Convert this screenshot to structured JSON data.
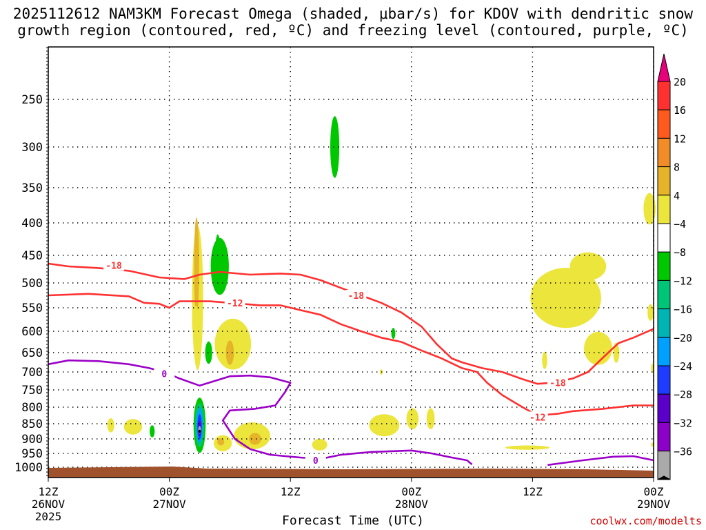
{
  "chart_data": {
    "type": "heatmap",
    "title_line1": "2025112612 NAM3KM Forecast Omega (shaded, μbar/s) for KDOV with dendritic snow",
    "title_line2": "growth region (contoured, red, ºC) and freezing level (contoured, purple, ºC)",
    "xlabel": "Forecast Time (UTC)",
    "credit": "coolwx.com/modelts",
    "x_range_hours": [
      0,
      60
    ],
    "x_ticks": [
      {
        "hour": 0,
        "lines": [
          "12Z",
          "26NOV",
          "2025"
        ]
      },
      {
        "hour": 12,
        "lines": [
          "00Z",
          "27NOV"
        ]
      },
      {
        "hour": 24,
        "lines": [
          "12Z"
        ]
      },
      {
        "hour": 36,
        "lines": [
          "00Z",
          "28NOV"
        ]
      },
      {
        "hour": 48,
        "lines": [
          "12Z"
        ]
      },
      {
        "hour": 60,
        "lines": [
          "00Z",
          "29NOV"
        ]
      }
    ],
    "y_axis": "pressure (mb), reversed",
    "y_ticks": [
      250,
      300,
      350,
      400,
      450,
      500,
      550,
      600,
      650,
      700,
      750,
      800,
      850,
      900,
      950,
      1000
    ],
    "grid": "dotted",
    "colorbar": {
      "labels": [
        "20",
        "16",
        "12",
        "8",
        "4",
        "−4",
        "−8",
        "−12",
        "−16",
        "−20",
        "−24",
        "−28",
        "−32",
        "−36"
      ],
      "colors": [
        "#e8007a",
        "#ff3030",
        "#ff5a1e",
        "#f28c28",
        "#e6b428",
        "#ece53c",
        "#ffffff",
        "#00c800",
        "#00c478",
        "#00b4b4",
        "#00a0ff",
        "#1e3cff",
        "#5a00c8",
        "#8c00c8",
        "#aaaaaa",
        "#000000"
      ]
    },
    "surface_color": "#a0522d",
    "contours": [
      {
        "color": "#ff3030",
        "label": "-18",
        "label_positions": [
          {
            "hour": 6.5,
            "p": 468
          },
          {
            "hour": 30.5,
            "p": 525
          },
          {
            "hour": 50.5,
            "p": 730
          }
        ],
        "points": [
          [
            0,
            465
          ],
          [
            2,
            470
          ],
          [
            5,
            473
          ],
          [
            8,
            478
          ],
          [
            11,
            490
          ],
          [
            13.5,
            493
          ],
          [
            15,
            485
          ],
          [
            17,
            480
          ],
          [
            20,
            485
          ],
          [
            23,
            483
          ],
          [
            25,
            485
          ],
          [
            27,
            495
          ],
          [
            29,
            510
          ],
          [
            31,
            525
          ],
          [
            33,
            540
          ],
          [
            35,
            560
          ],
          [
            37,
            590
          ],
          [
            38.5,
            630
          ],
          [
            40,
            665
          ],
          [
            41,
            675
          ],
          [
            43,
            690
          ],
          [
            45,
            700
          ],
          [
            47,
            720
          ],
          [
            48.5,
            733
          ],
          [
            50,
            730
          ],
          [
            52,
            718
          ],
          [
            53.5,
            700
          ],
          [
            54.5,
            675
          ],
          [
            55.5,
            650
          ],
          [
            56.5,
            628
          ],
          [
            58,
            615
          ],
          [
            60,
            595
          ]
        ]
      },
      {
        "color": "#ff3030",
        "label": "-12",
        "label_positions": [
          {
            "hour": 18.5,
            "p": 540
          },
          {
            "hour": 48.5,
            "p": 830
          }
        ],
        "points": [
          [
            0,
            525
          ],
          [
            4,
            522
          ],
          [
            8,
            527
          ],
          [
            9.5,
            540
          ],
          [
            11,
            542
          ],
          [
            12,
            550
          ],
          [
            13,
            537
          ],
          [
            16,
            537
          ],
          [
            18,
            540
          ],
          [
            21,
            545
          ],
          [
            23,
            545
          ],
          [
            25,
            555
          ],
          [
            27,
            565
          ],
          [
            29,
            585
          ],
          [
            31,
            600
          ],
          [
            33,
            615
          ],
          [
            35,
            625
          ],
          [
            37,
            645
          ],
          [
            39,
            665
          ],
          [
            41,
            690
          ],
          [
            42.5,
            700
          ],
          [
            43.5,
            730
          ],
          [
            45,
            765
          ],
          [
            47,
            800
          ],
          [
            48.5,
            825
          ],
          [
            50.5,
            820
          ],
          [
            52,
            812
          ],
          [
            55,
            805
          ],
          [
            58,
            795
          ],
          [
            60,
            795
          ]
        ]
      },
      {
        "color": "#9a00c8",
        "label": "0",
        "label_positions": [
          {
            "hour": 11.5,
            "p": 705
          },
          {
            "hour": 26.5,
            "p": 975
          }
        ],
        "points": [
          [
            0,
            680
          ],
          [
            2,
            670
          ],
          [
            5,
            672
          ],
          [
            8,
            680
          ],
          [
            10,
            690
          ],
          [
            11.5,
            700
          ],
          [
            13,
            718
          ],
          [
            15,
            738
          ],
          [
            16.5,
            725
          ],
          [
            18,
            712
          ],
          [
            20,
            710
          ],
          [
            22,
            715
          ],
          [
            24,
            730
          ],
          [
            23.5,
            755
          ],
          [
            22.5,
            795
          ],
          [
            20.5,
            805
          ],
          [
            18,
            810
          ],
          [
            17.3,
            840
          ],
          [
            18.5,
            900
          ],
          [
            20,
            935
          ],
          [
            22,
            955
          ],
          [
            25,
            965
          ],
          [
            27,
            970
          ],
          [
            29,
            955
          ],
          [
            32,
            945
          ],
          [
            36,
            940
          ],
          [
            38,
            950
          ],
          [
            40,
            965
          ],
          [
            41.5,
            975
          ],
          [
            42,
            990
          ]
        ]
      },
      {
        "color": "#9a00c8",
        "label": "",
        "label_positions": [],
        "points": [
          [
            49.5,
            992
          ],
          [
            53,
            975
          ],
          [
            56,
            962
          ],
          [
            58,
            960
          ],
          [
            60,
            975
          ]
        ]
      }
    ],
    "omega_regions": [
      {
        "hour": 14.8,
        "p": 530,
        "dh": 0.55,
        "dp": 280,
        "color": "#ece53c"
      },
      {
        "hour": 14.7,
        "p": 470,
        "dh": 0.25,
        "dp": 170,
        "color": "#e6b428"
      },
      {
        "hour": 17.0,
        "p": 470,
        "dh": 0.9,
        "dp": 100,
        "color": "#00c800"
      },
      {
        "hour": 16.8,
        "p": 460,
        "dh": 0.3,
        "dp": 90,
        "color": "#00c800"
      },
      {
        "hour": 14.6,
        "p": 580,
        "dh": 0.35,
        "dp": 70,
        "color": "#ece53c"
      },
      {
        "hour": 18.3,
        "p": 630,
        "dh": 1.8,
        "dp": 120,
        "color": "#ece53c"
      },
      {
        "hour": 18.0,
        "p": 650,
        "dh": 0.4,
        "dp": 60,
        "color": "#e6b428"
      },
      {
        "hour": 15.9,
        "p": 650,
        "dh": 0.35,
        "dp": 55,
        "color": "#00c800"
      },
      {
        "hour": 15.0,
        "p": 855,
        "dh": 0.6,
        "dp": 175,
        "color": "#00c800"
      },
      {
        "hour": 15.0,
        "p": 855,
        "dh": 0.45,
        "dp": 140,
        "color": "#00c478"
      },
      {
        "hour": 15.0,
        "p": 855,
        "dh": 0.33,
        "dp": 110,
        "color": "#00a0ff"
      },
      {
        "hour": 15.0,
        "p": 860,
        "dh": 0.22,
        "dp": 80,
        "color": "#1e3cff"
      },
      {
        "hour": 15.0,
        "p": 865,
        "dh": 0.13,
        "dp": 50,
        "color": "#5a00c8"
      },
      {
        "hour": 15.0,
        "p": 870,
        "dh": 0.07,
        "dp": 25,
        "color": "#aaaaaa"
      },
      {
        "hour": 15.0,
        "p": 875,
        "dh": 0.03,
        "dp": 10,
        "color": "#000000"
      },
      {
        "hour": 17.3,
        "p": 915,
        "dh": 0.9,
        "dp": 55,
        "color": "#ece53c"
      },
      {
        "hour": 17.1,
        "p": 910,
        "dh": 0.35,
        "dp": 25,
        "color": "#e6b428"
      },
      {
        "hour": 20.2,
        "p": 890,
        "dh": 1.8,
        "dp": 90,
        "color": "#ece53c"
      },
      {
        "hour": 20.5,
        "p": 900,
        "dh": 0.6,
        "dp": 40,
        "color": "#e6b428"
      },
      {
        "hour": 6.2,
        "p": 855,
        "dh": 0.35,
        "dp": 45,
        "color": "#ece53c"
      },
      {
        "hour": 8.4,
        "p": 860,
        "dh": 0.9,
        "dp": 50,
        "color": "#ece53c"
      },
      {
        "hour": 10.3,
        "p": 875,
        "dh": 0.25,
        "dp": 40,
        "color": "#00c800"
      },
      {
        "hour": 26.9,
        "p": 920,
        "dh": 0.75,
        "dp": 40,
        "color": "#ece53c"
      },
      {
        "hour": 28.4,
        "p": 300,
        "dh": 0.45,
        "dp": 70,
        "color": "#00c800"
      },
      {
        "hour": 34.2,
        "p": 605,
        "dh": 0.2,
        "dp": 25,
        "color": "#00c800"
      },
      {
        "hour": 33.3,
        "p": 855,
        "dh": 1.5,
        "dp": 70,
        "color": "#ece53c"
      },
      {
        "hour": 36.1,
        "p": 835,
        "dh": 0.6,
        "dp": 65,
        "color": "#ece53c"
      },
      {
        "hour": 37.9,
        "p": 835,
        "dh": 0.4,
        "dp": 65,
        "color": "#ece53c"
      },
      {
        "hour": 33.0,
        "p": 700,
        "dh": 0.1,
        "dp": 15,
        "color": "#ece53c"
      },
      {
        "hour": 51.3,
        "p": 530,
        "dh": 3.5,
        "dp": 120,
        "color": "#ece53c"
      },
      {
        "hour": 53.5,
        "p": 470,
        "dh": 1.8,
        "dp": 50,
        "color": "#ece53c"
      },
      {
        "hour": 54.5,
        "p": 640,
        "dh": 1.4,
        "dp": 80,
        "color": "#ece53c"
      },
      {
        "hour": 56.3,
        "p": 650,
        "dh": 0.3,
        "dp": 50,
        "color": "#ece53c"
      },
      {
        "hour": 49.2,
        "p": 670,
        "dh": 0.25,
        "dp": 45,
        "color": "#ece53c"
      },
      {
        "hour": 47.5,
        "p": 930,
        "dh": 2.2,
        "dp": 15,
        "color": "#ece53c"
      },
      {
        "hour": 59.6,
        "p": 380,
        "dh": 0.6,
        "dp": 45,
        "color": "#ece53c"
      },
      {
        "hour": 59.7,
        "p": 560,
        "dh": 0.3,
        "dp": 35,
        "color": "#ece53c"
      },
      {
        "hour": 59.9,
        "p": 690,
        "dh": 0.15,
        "dp": 25,
        "color": "#ece53c"
      },
      {
        "hour": 59.9,
        "p": 920,
        "dh": 0.15,
        "dp": 15,
        "color": "#ece53c"
      }
    ]
  }
}
